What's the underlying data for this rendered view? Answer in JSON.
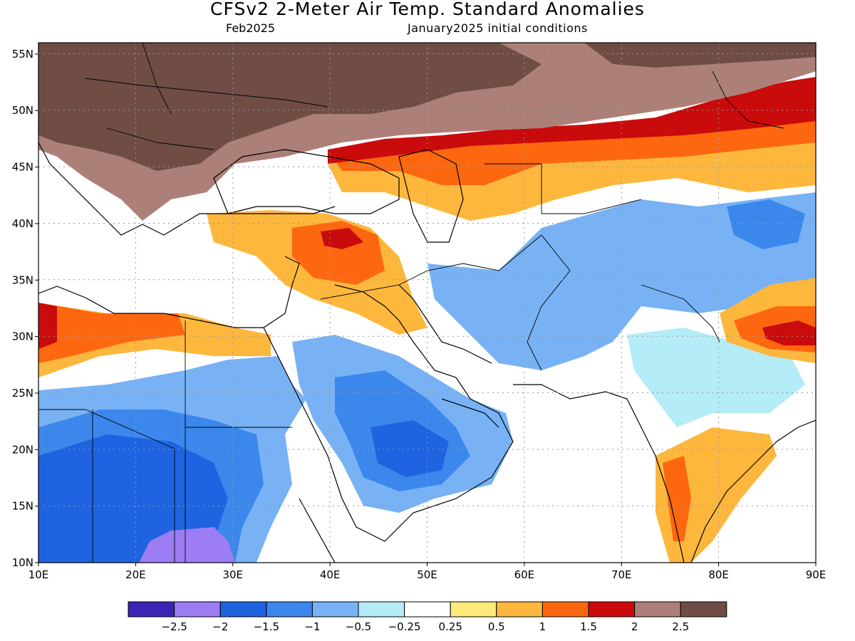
{
  "title": "CFSv2 2-Meter Air Temp. Standard Anomalies",
  "valid_month": "Feb2025",
  "initial_conditions": "January2025 initial conditions",
  "map": {
    "lon_range": [
      10,
      90
    ],
    "lat_range": [
      10,
      56
    ],
    "lat_labels": [
      "55N",
      "50N",
      "45N",
      "40N",
      "35N",
      "30N",
      "25N",
      "20N",
      "15N",
      "10N"
    ],
    "lat_values": [
      55,
      50,
      45,
      40,
      35,
      30,
      25,
      20,
      15,
      10
    ],
    "lon_labels": [
      "10E",
      "20E",
      "30E",
      "40E",
      "50E",
      "60E",
      "70E",
      "80E",
      "90E"
    ],
    "lon_values": [
      10,
      20,
      30,
      40,
      50,
      60,
      70,
      80,
      90
    ],
    "grid": true
  },
  "colorbar": {
    "labels": [
      "-2.5",
      "-2",
      "-1.5",
      "-1",
      "-0.5",
      "-0.25",
      "0.25",
      "0.5",
      "1",
      "1.5",
      "2",
      "2.5"
    ],
    "colors": [
      "#3a25b5",
      "#9c7df3",
      "#1f63e0",
      "#3b87ec",
      "#78b2f5",
      "#b4ecf7",
      "#ffffff",
      "#fdea7b",
      "#fdb73d",
      "#fd6710",
      "#c90b0b",
      "#ac8078",
      "#6f4d45"
    ]
  },
  "colors": {
    "land_outline": "#000000",
    "grid": "#999999"
  }
}
